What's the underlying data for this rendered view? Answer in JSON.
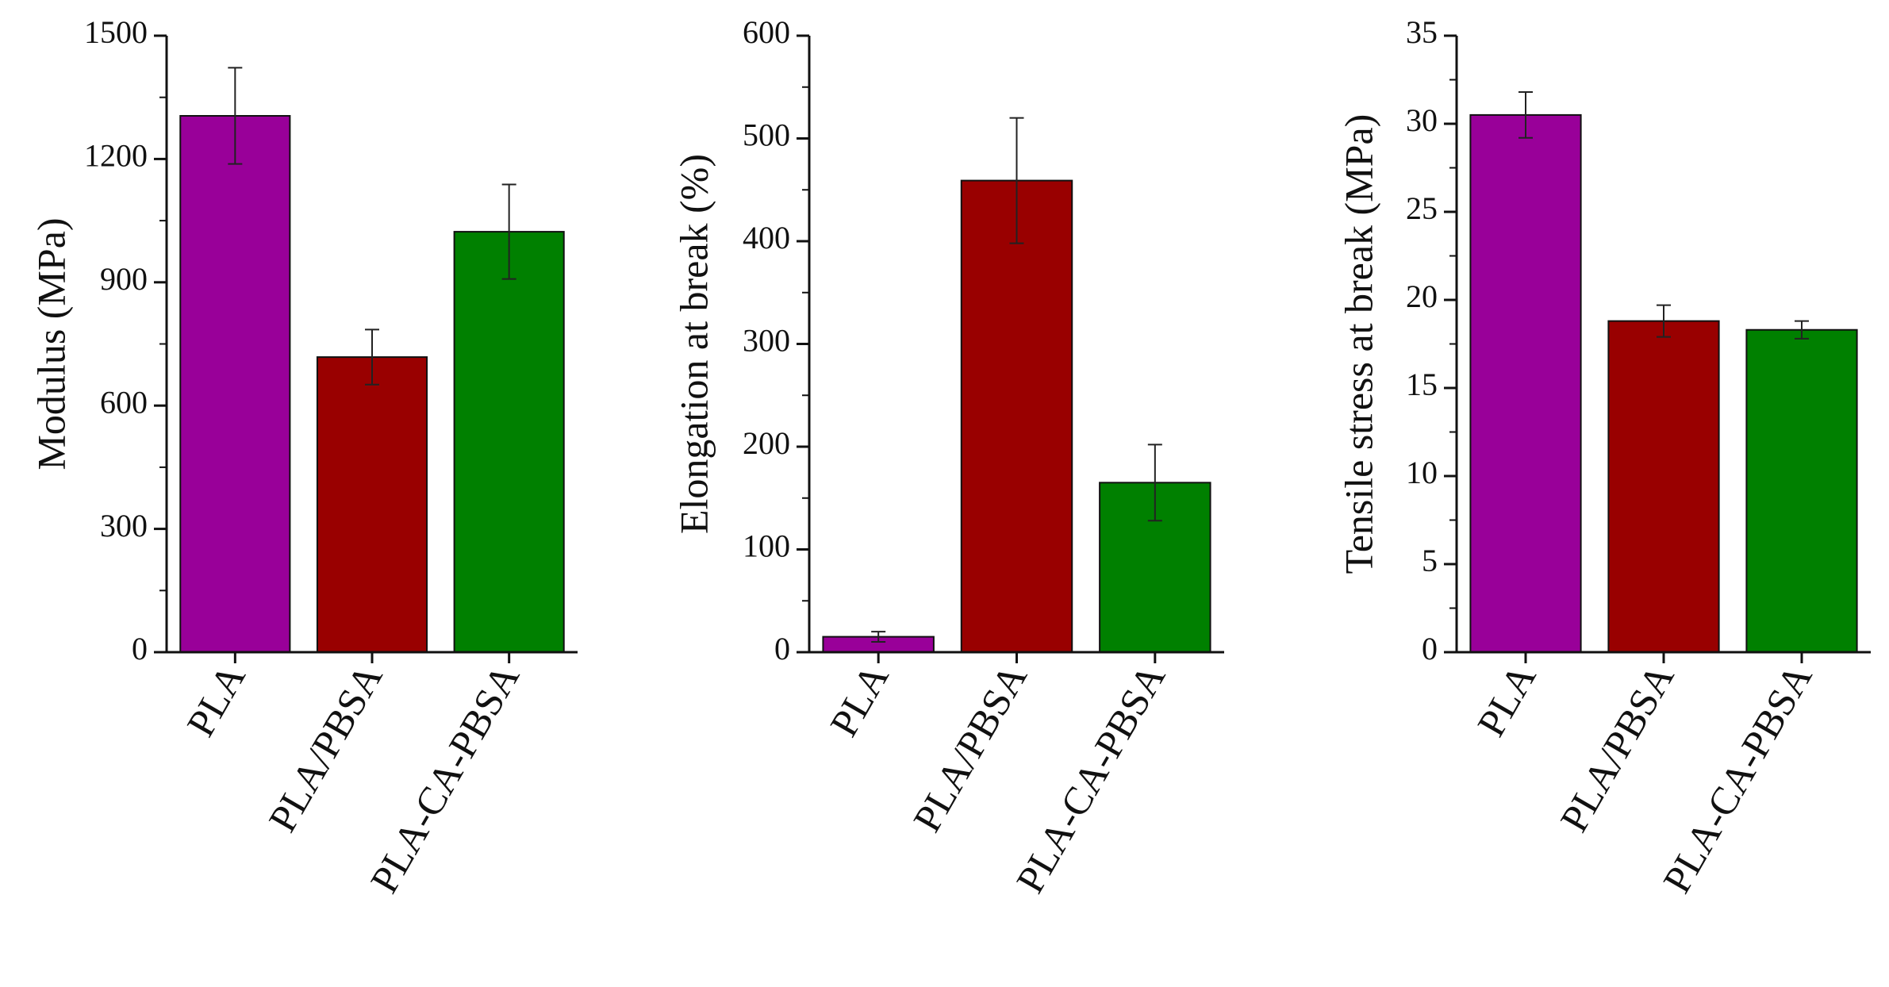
{
  "chart_data": [
    {
      "type": "bar",
      "categories": [
        "PLA",
        "PLA/PBSA",
        "PLA-CA-PBSA"
      ],
      "values": [
        1305,
        718,
        1023
      ],
      "errors": [
        117,
        67,
        115
      ],
      "colors": [
        "#990099",
        "#990000",
        "#008000"
      ],
      "xlabel": "",
      "ylabel": "Modulus (MPa)",
      "ylim": [
        0,
        1500
      ],
      "yticks": [
        "0",
        "300",
        "600",
        "900",
        "1200",
        "1500"
      ],
      "grid": false
    },
    {
      "type": "bar",
      "categories": [
        "PLA",
        "PLA/PBSA",
        "PLA-CA-PBSA"
      ],
      "values": [
        15,
        459,
        165
      ],
      "errors": [
        5,
        61,
        37
      ],
      "colors": [
        "#990099",
        "#990000",
        "#008000"
      ],
      "xlabel": "",
      "ylabel": "Elongation at break (%)",
      "ylim": [
        0,
        600
      ],
      "yticks": [
        "0",
        "100",
        "200",
        "300",
        "400",
        "500",
        "600"
      ],
      "grid": false
    },
    {
      "type": "bar",
      "categories": [
        "PLA",
        "PLA/PBSA",
        "PLA-CA-PBSA"
      ],
      "values": [
        30.5,
        18.8,
        18.3
      ],
      "errors": [
        1.3,
        0.9,
        0.5
      ],
      "colors": [
        "#990099",
        "#990000",
        "#008000"
      ],
      "xlabel": "",
      "ylabel": "Tensile stress at break (MPa)",
      "ylim": [
        0,
        35
      ],
      "yticks": [
        "0",
        "5",
        "10",
        "15",
        "20",
        "25",
        "30",
        "35"
      ],
      "grid": false
    }
  ]
}
